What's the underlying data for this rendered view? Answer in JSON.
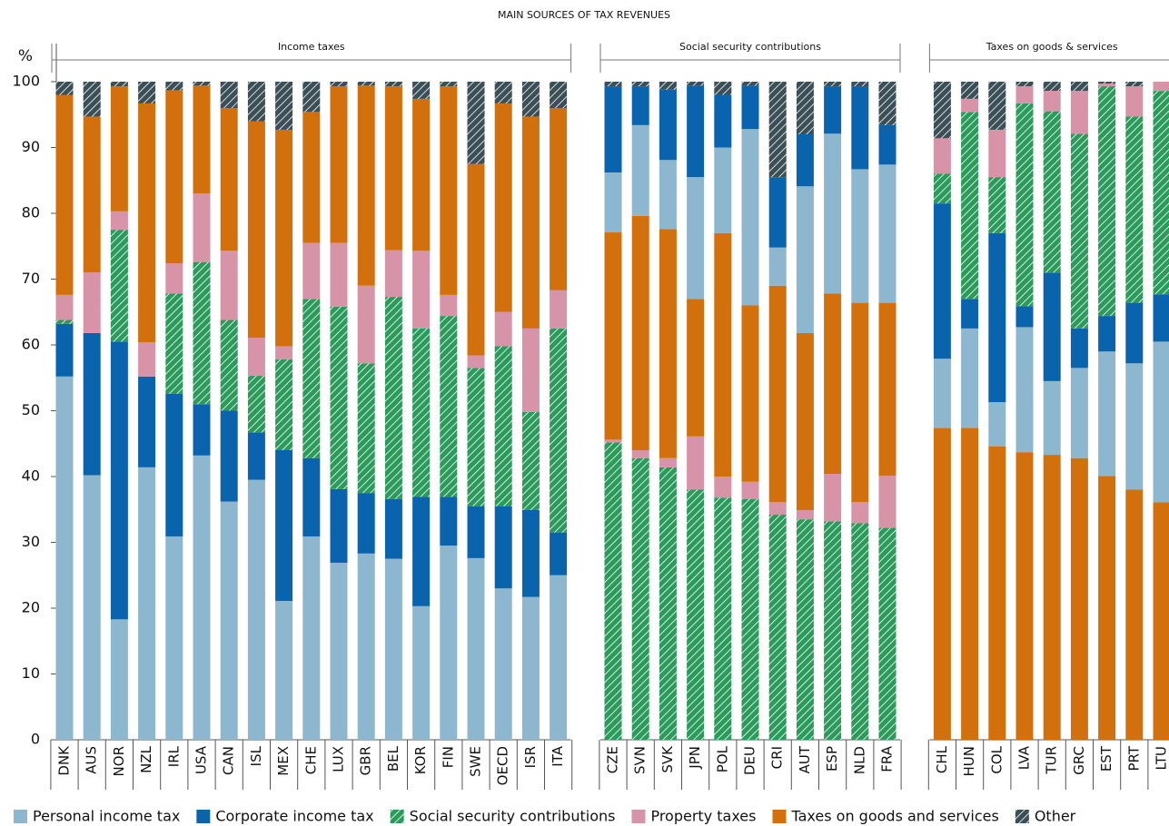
{
  "chart_data": {
    "type": "bar",
    "stacked": true,
    "title": "MAIN SOURCES OF TAX REVENUES",
    "y_label": "%",
    "ylim": [
      0,
      100
    ],
    "yticks": [
      0,
      10,
      20,
      30,
      40,
      50,
      60,
      70,
      80,
      90,
      100
    ],
    "groups": [
      {
        "label": "Income taxes",
        "stack_order": [
          0,
          1,
          2,
          3,
          4,
          5
        ],
        "categories": [
          "DNK",
          "AUS",
          "NOR",
          "NZL",
          "IRL",
          "USA",
          "CAN",
          "ISL",
          "MEX",
          "CHE",
          "LUX",
          "GBR",
          "BEL",
          "KOR",
          "FIN",
          "SWE",
          "OECD",
          "ISR",
          "ITA"
        ]
      },
      {
        "label": "Social security contributions",
        "stack_order": [
          2,
          3,
          4,
          0,
          1,
          5
        ],
        "categories": [
          "CZE",
          "SVN",
          "SVK",
          "JPN",
          "POL",
          "DEU",
          "CRI",
          "AUT",
          "ESP",
          "NLD",
          "FRA"
        ]
      },
      {
        "label": "Taxes on goods & services",
        "stack_order": [
          4,
          0,
          1,
          2,
          3,
          5
        ],
        "categories": [
          "CHL",
          "HUN",
          "COL",
          "LVA",
          "TUR",
          "GRC",
          "EST",
          "PRT",
          "LTU"
        ]
      }
    ],
    "series": [
      {
        "name": "Personal income tax",
        "color": "#8db7ce",
        "hatch": false,
        "values": [
          55.2,
          40.2,
          18.3,
          41.4,
          30.9,
          43.2,
          36.2,
          39.5,
          21.1,
          30.9,
          26.9,
          28.3,
          27.5,
          20.3,
          29.5,
          27.6,
          23,
          21.7,
          25,
          9.1,
          13.8,
          10.5,
          18.5,
          13,
          26.8,
          5.8,
          22.3,
          24.3,
          20.3,
          21,
          10.5,
          15.1,
          6.7,
          19,
          11.2,
          13.7,
          18.9,
          19.2,
          24.4
        ]
      },
      {
        "name": "Corporate income tax",
        "color": "#0a64ad",
        "hatch": false,
        "values": [
          8,
          21.6,
          42.2,
          13.8,
          21.7,
          7.8,
          13.8,
          7.2,
          22.9,
          11.9,
          11.2,
          9.2,
          9.1,
          16.6,
          7.4,
          7.9,
          12.5,
          13.2,
          6.5,
          13.1,
          5.9,
          10.7,
          13.9,
          8,
          6.6,
          10.7,
          7.9,
          7.2,
          12.6,
          6,
          23.6,
          4.5,
          25.7,
          3.2,
          16.5,
          6,
          5.4,
          9.2,
          7.2
        ]
      },
      {
        "name": "Social security contributions",
        "color": "#2a9b5a",
        "hatch": true,
        "values": [
          0.6,
          0,
          17,
          0,
          15.2,
          21.6,
          13.8,
          8.6,
          13.8,
          24.2,
          27.7,
          19.7,
          30.7,
          25.6,
          27.5,
          21,
          24.3,
          14.9,
          31,
          45.2,
          42.8,
          41.4,
          38,
          36.8,
          36.6,
          34.2,
          33.5,
          33.2,
          32.9,
          32.2,
          4.5,
          28.4,
          8.5,
          30.8,
          24.5,
          29.6,
          34.9,
          28.3,
          30.9
        ]
      },
      {
        "name": "Property taxes",
        "color": "#d793a7",
        "hatch": false,
        "values": [
          3.8,
          9.2,
          2.8,
          5.2,
          4.6,
          10.4,
          10.5,
          5.8,
          2,
          8.5,
          9.7,
          11.8,
          7.1,
          11.8,
          3.2,
          1.9,
          5.2,
          12.7,
          5.8,
          0.4,
          1.2,
          1.4,
          8.1,
          3.2,
          2.6,
          1.9,
          1.4,
          7.2,
          3.2,
          7.9,
          5.4,
          2,
          7.2,
          2.6,
          3.1,
          6.5,
          0.4,
          4.6,
          1.4
        ]
      },
      {
        "name": "Taxes on goods and services",
        "color": "#d2700d",
        "hatch": false,
        "values": [
          30.4,
          23.7,
          19,
          36.3,
          26.3,
          16.4,
          21.7,
          32.9,
          32.9,
          19.9,
          23.8,
          30.4,
          24.9,
          23.1,
          31.7,
          29.1,
          31.7,
          32.2,
          27.7,
          31.5,
          35.6,
          34.8,
          20.9,
          37,
          26.8,
          32.9,
          26.9,
          27.4,
          30.3,
          26.3,
          47.4,
          47.4,
          44.6,
          43.7,
          43.3,
          42.8,
          40.1,
          38,
          36.1
        ]
      },
      {
        "name": "Other",
        "color": "#3b4f57",
        "hatch": true,
        "values": [
          2,
          5.3,
          0.7,
          3.3,
          1.3,
          0.6,
          4,
          6,
          7.3,
          4.6,
          0.7,
          0.6,
          0.7,
          2.6,
          0.7,
          12.5,
          3.3,
          5.3,
          4,
          0.7,
          0.7,
          1.2,
          0.6,
          2,
          0.6,
          14.5,
          8,
          0.7,
          0.7,
          6.6,
          8.6,
          2.6,
          7.3,
          0.7,
          1.4,
          1.4,
          0.3,
          0.7,
          0
        ]
      }
    ]
  }
}
